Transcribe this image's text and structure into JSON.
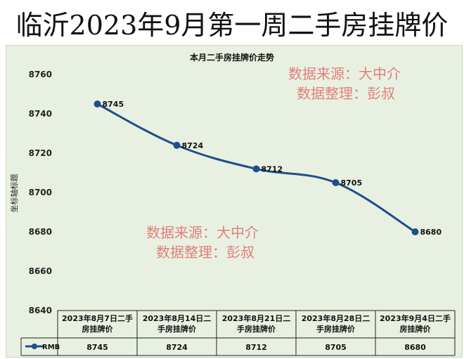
{
  "header": {
    "title": "临沂2023年9月第一周二手房挂牌价"
  },
  "watermarks": [
    {
      "line1": "数据来源：大中介",
      "line2": "数据整理：彭叔"
    },
    {
      "line1": "数据来源：大中介",
      "line2": "数据整理：彭叔"
    }
  ],
  "colors": {
    "series": "#1f4e8c",
    "watermark": "#e06a6a",
    "plot_background": "#e8f1e1"
  },
  "chart_data": {
    "type": "line",
    "title": "本月二手房挂牌价走势",
    "ylabel": "坐标轴标题",
    "ylim": [
      8640,
      8760
    ],
    "yticks": [
      "8760",
      "8740",
      "8720",
      "8700",
      "8680",
      "8660",
      "8640"
    ],
    "categories": [
      [
        "2023年8月7日二手",
        "房挂牌价"
      ],
      [
        "2023年8月14日二",
        "手房挂牌价"
      ],
      [
        "2023年8月21日二",
        "手房挂牌价"
      ],
      [
        "2023年8月28日二",
        "手房挂牌价"
      ],
      [
        "2023年9月4日二手",
        "房挂牌价"
      ]
    ],
    "series": [
      {
        "name": "RMB",
        "values": [
          8745,
          8724,
          8712,
          8705,
          8680
        ]
      }
    ],
    "data_labels": [
      "8745",
      "8724",
      "8712",
      "8705",
      "8680"
    ]
  }
}
